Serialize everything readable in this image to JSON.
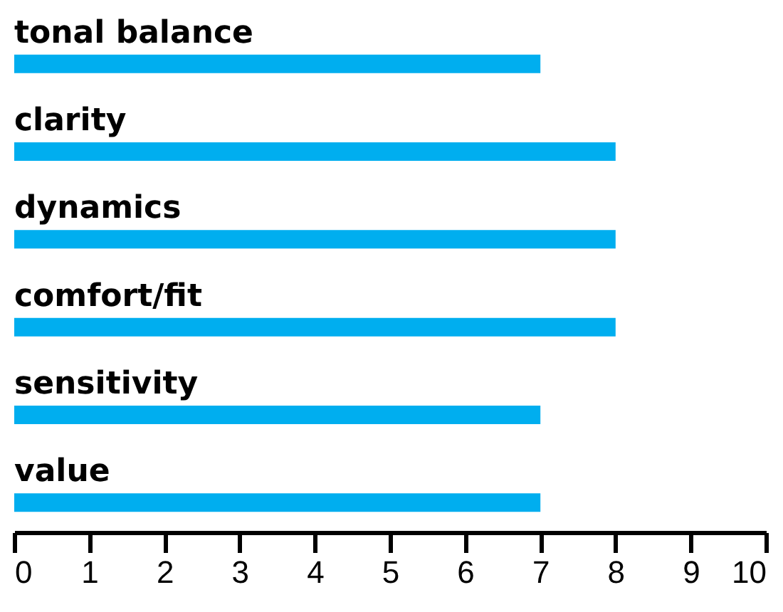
{
  "chart_data": {
    "type": "bar",
    "orientation": "horizontal",
    "categories": [
      "tonal balance",
      "clarity",
      "dynamics",
      "comfort/fit",
      "sensitivity",
      "value"
    ],
    "values": [
      7,
      8,
      8,
      8,
      7,
      7
    ],
    "color": "#00aeef",
    "xlim": [
      0,
      10
    ],
    "xticks": [
      0,
      1,
      2,
      3,
      4,
      5,
      6,
      7,
      8,
      9,
      10
    ],
    "grid": false
  }
}
